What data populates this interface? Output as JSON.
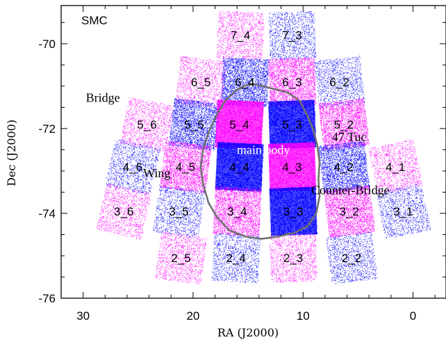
{
  "chart_data": {
    "type": "scatter",
    "title": "SMC",
    "xlabel": "RA (J2000)",
    "ylabel": "Dec (J2000)",
    "xlim": [
      32,
      -3
    ],
    "ylim": [
      -76,
      -69.1
    ],
    "x_ticks": [
      30,
      20,
      10,
      0
    ],
    "y_ticks": [
      -70,
      -72,
      -74,
      -76
    ],
    "grid": false,
    "colors": {
      "magenta_tiles": "#ff00ff",
      "blue_tiles": "#0000ff",
      "contour": "#707070"
    },
    "tiles": [
      {
        "label": "7_4",
        "ra": 15.7,
        "dec": -69.8,
        "color": "magenta",
        "density": "sparse"
      },
      {
        "label": "7_3",
        "ra": 11.0,
        "dec": -69.8,
        "color": "blue",
        "density": "sparse"
      },
      {
        "label": "6_5",
        "ra": 19.3,
        "dec": -70.9,
        "color": "magenta",
        "density": "sparse"
      },
      {
        "label": "6_4",
        "ra": 15.3,
        "dec": -70.9,
        "color": "blue",
        "density": "medium"
      },
      {
        "label": "6_3",
        "ra": 11.0,
        "dec": -70.9,
        "color": "magenta",
        "density": "medium"
      },
      {
        "label": "6_2",
        "ra": 6.7,
        "dec": -70.9,
        "color": "blue",
        "density": "sparse"
      },
      {
        "label": "5_6",
        "ra": 24.2,
        "dec": -71.9,
        "color": "magenta",
        "density": "sparse"
      },
      {
        "label": "5_5",
        "ra": 19.9,
        "dec": -71.9,
        "color": "blue",
        "density": "medium"
      },
      {
        "label": "5_4",
        "ra": 15.8,
        "dec": -71.9,
        "color": "magenta",
        "density": "dense"
      },
      {
        "label": "5_3",
        "ra": 11.0,
        "dec": -71.9,
        "color": "blue",
        "density": "dense"
      },
      {
        "label": "5_2",
        "ra": 6.3,
        "dec": -71.9,
        "color": "magenta",
        "density": "medium"
      },
      {
        "label": "4_6",
        "ra": 25.5,
        "dec": -72.9,
        "color": "blue",
        "density": "sparse"
      },
      {
        "label": "4_5",
        "ra": 20.7,
        "dec": -72.9,
        "color": "magenta",
        "density": "medium"
      },
      {
        "label": "4_4",
        "ra": 15.8,
        "dec": -72.9,
        "color": "blue",
        "density": "dense"
      },
      {
        "label": "4_3",
        "ra": 11.0,
        "dec": -72.9,
        "color": "magenta",
        "density": "dense"
      },
      {
        "label": "4_2",
        "ra": 6.3,
        "dec": -72.9,
        "color": "blue",
        "density": "medium"
      },
      {
        "label": "4_1",
        "ra": 1.6,
        "dec": -72.9,
        "color": "magenta",
        "density": "sparse"
      },
      {
        "label": "3_6",
        "ra": 26.3,
        "dec": -73.95,
        "color": "magenta",
        "density": "sparse"
      },
      {
        "label": "3_5",
        "ra": 21.3,
        "dec": -73.95,
        "color": "blue",
        "density": "sparse"
      },
      {
        "label": "3_4",
        "ra": 16.0,
        "dec": -73.95,
        "color": "magenta",
        "density": "medium"
      },
      {
        "label": "3_3",
        "ra": 10.9,
        "dec": -73.95,
        "color": "blue",
        "density": "dense"
      },
      {
        "label": "3_2",
        "ra": 5.8,
        "dec": -73.95,
        "color": "magenta",
        "density": "medium"
      },
      {
        "label": "3_1",
        "ra": 0.9,
        "dec": -73.95,
        "color": "blue",
        "density": "sparse"
      },
      {
        "label": "2_5",
        "ra": 21.1,
        "dec": -75.05,
        "color": "magenta",
        "density": "sparse"
      },
      {
        "label": "2_4",
        "ra": 16.1,
        "dec": -75.05,
        "color": "blue",
        "density": "sparse"
      },
      {
        "label": "2_3",
        "ra": 10.9,
        "dec": -75.05,
        "color": "magenta",
        "density": "sparse"
      },
      {
        "label": "2_2",
        "ra": 5.6,
        "dec": -75.05,
        "color": "blue",
        "density": "sparse"
      }
    ],
    "annotations": [
      {
        "text": "Bridge",
        "ra": 28.2,
        "dec": -71.27,
        "color": "black"
      },
      {
        "text": "Wing",
        "ra": 23.3,
        "dec": -73.05,
        "color": "black"
      },
      {
        "text": "main body",
        "ra": 13.6,
        "dec": -72.5,
        "color": "white"
      },
      {
        "text": "47 Tuc",
        "ra": 5.8,
        "dec": -72.2,
        "color": "black"
      },
      {
        "text": "Counter-Bridge",
        "ra": 5.7,
        "dec": -73.45,
        "color": "black"
      }
    ],
    "contour": [
      [
        14.4,
        -70.95
      ],
      [
        12.9,
        -71.05
      ],
      [
        11.4,
        -71.15
      ],
      [
        10.3,
        -71.35
      ],
      [
        9.6,
        -71.7
      ],
      [
        9.1,
        -72.0
      ],
      [
        8.7,
        -72.4
      ],
      [
        8.5,
        -72.8
      ],
      [
        8.6,
        -73.2
      ],
      [
        8.5,
        -73.6
      ],
      [
        8.8,
        -74.0
      ],
      [
        9.6,
        -74.3
      ],
      [
        10.7,
        -74.45
      ],
      [
        12.3,
        -74.55
      ],
      [
        13.8,
        -74.6
      ],
      [
        15.2,
        -74.55
      ],
      [
        16.7,
        -74.4
      ],
      [
        17.8,
        -74.1
      ],
      [
        18.6,
        -73.75
      ],
      [
        19.1,
        -73.3
      ],
      [
        19.3,
        -72.9
      ],
      [
        19.1,
        -72.5
      ],
      [
        18.6,
        -72.1
      ],
      [
        17.9,
        -71.7
      ],
      [
        17.1,
        -71.35
      ],
      [
        16.1,
        -71.1
      ],
      [
        15.2,
        -70.98
      ],
      [
        14.4,
        -70.95
      ]
    ]
  }
}
